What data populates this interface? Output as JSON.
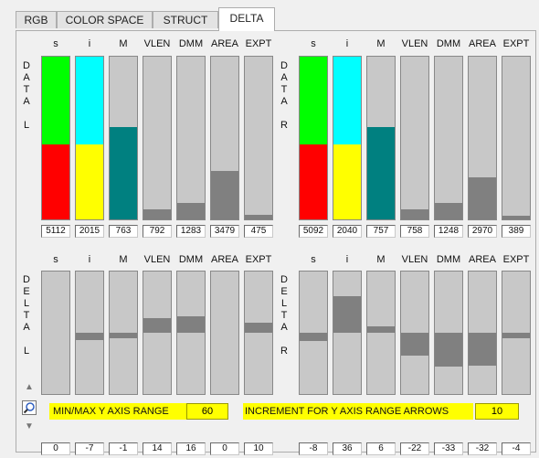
{
  "tabs": [
    "RGB",
    "COLOR SPACE",
    "STRUCT",
    "DELTA"
  ],
  "active_tab": "DELTA",
  "column_headers": [
    "s",
    "i",
    "M",
    "VLEN",
    "DMM",
    "AREA",
    "EXPT"
  ],
  "quadrants": {
    "data_l": {
      "label": [
        "D",
        "A",
        "T",
        "A",
        "",
        "L"
      ],
      "values": [
        "5112",
        "2015",
        "763",
        "792",
        "1283",
        "3479",
        "475"
      ]
    },
    "data_r": {
      "label": [
        "D",
        "A",
        "T",
        "A",
        "",
        "R"
      ],
      "values": [
        "5092",
        "2040",
        "757",
        "758",
        "1248",
        "2970",
        "389"
      ]
    },
    "delta_l": {
      "label": [
        "D",
        "E",
        "L",
        "T",
        "A",
        "",
        "L"
      ],
      "values": [
        "0",
        "-7",
        "-1",
        "14",
        "16",
        "0",
        "10"
      ]
    },
    "delta_r": {
      "label": [
        "D",
        "E",
        "L",
        "T",
        "A",
        "",
        "R"
      ],
      "values": [
        "-8",
        "36",
        "6",
        "-22",
        "-33",
        "-32",
        "-4"
      ]
    }
  },
  "bar_fills": {
    "data_l": [
      {
        "top_color": "#00ff00",
        "bottom_color": "#ff0000",
        "bottom_fraction": 0.46
      },
      {
        "top_color": "#00ffff",
        "bottom_color": "#ffff00",
        "bottom_fraction": 0.46
      },
      {
        "color": "#008080",
        "fraction": 0.57
      },
      {
        "color": "#808080",
        "fraction": 0.06
      },
      {
        "color": "#808080",
        "fraction": 0.1
      },
      {
        "color": "#808080",
        "fraction": 0.3
      },
      {
        "color": "#808080",
        "fraction": 0.03
      }
    ],
    "data_r": [
      {
        "top_color": "#00ff00",
        "bottom_color": "#ff0000",
        "bottom_fraction": 0.46
      },
      {
        "top_color": "#00ffff",
        "bottom_color": "#ffff00",
        "bottom_fraction": 0.46
      },
      {
        "color": "#008080",
        "fraction": 0.57
      },
      {
        "color": "#808080",
        "fraction": 0.06
      },
      {
        "color": "#808080",
        "fraction": 0.1
      },
      {
        "color": "#808080",
        "fraction": 0.26
      },
      {
        "color": "#808080",
        "fraction": 0.02
      }
    ],
    "delta_l": [
      0,
      -7,
      -1,
      14,
      16,
      0,
      10
    ],
    "delta_r": [
      -8,
      36,
      6,
      -22,
      -33,
      -32,
      -4
    ]
  },
  "delta_color": "#808080",
  "controls": {
    "range_label": "MIN/MAX Y AXIS RANGE",
    "range_value": "60",
    "increment_label": "INCREMENT FOR Y AXIS RANGE ARROWS",
    "increment_value": "10",
    "up_arrow": "▲",
    "down_arrow": "▼",
    "zoom_icon": "magnifier-icon"
  }
}
